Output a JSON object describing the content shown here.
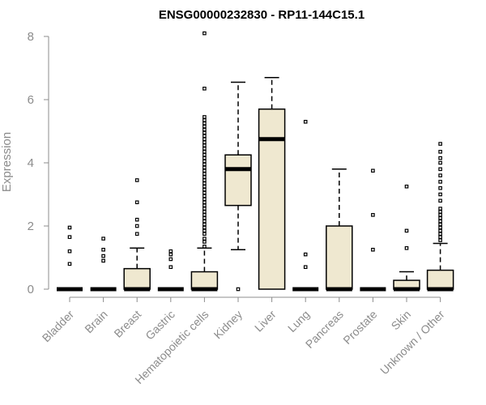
{
  "chart_data": {
    "type": "boxplot",
    "title": "ENSG00000232830 - RP11-144C15.1",
    "ylabel": "Expression",
    "xlabel": "",
    "ylim": [
      0,
      8
    ],
    "yticks": [
      0,
      2,
      4,
      6,
      8
    ],
    "grid": false,
    "legend": "none",
    "colors": {
      "box_fill": "#efe8d0",
      "box_stroke": "#000000",
      "axis": "#8c8c8c"
    },
    "categories": [
      "Bladder",
      "Brain",
      "Breast",
      "Gastric",
      "Hematopoietic cells",
      "Kidney",
      "Liver",
      "Lung",
      "Pancreas",
      "Prostate",
      "Skin",
      "Unknown / Other"
    ],
    "boxes": [
      {
        "q1": 0,
        "median": 0,
        "q3": 0,
        "whisker_low": 0,
        "whisker_high": 0,
        "outliers": [
          0.8,
          1.2,
          1.65,
          1.95
        ]
      },
      {
        "q1": 0,
        "median": 0,
        "q3": 0,
        "whisker_low": 0,
        "whisker_high": 0,
        "outliers": [
          0.9,
          1.05,
          1.25,
          1.6
        ]
      },
      {
        "q1": 0,
        "median": 0,
        "q3": 0.65,
        "whisker_low": 0,
        "whisker_high": 1.3,
        "outliers": [
          1.75,
          2.0,
          2.2,
          2.75,
          3.45
        ]
      },
      {
        "q1": 0,
        "median": 0,
        "q3": 0,
        "whisker_low": 0,
        "whisker_high": 0,
        "outliers": [
          0.7,
          0.95,
          1.1,
          1.2
        ]
      },
      {
        "q1": 0,
        "median": 0,
        "q3": 0.55,
        "whisker_low": 0,
        "whisker_high": 1.3,
        "outliers": [
          1.35,
          1.5,
          1.6,
          1.75,
          1.85,
          1.95,
          2.05,
          2.15,
          2.25,
          2.35,
          2.45,
          2.55,
          2.65,
          2.75,
          2.85,
          2.95,
          3.05,
          3.15,
          3.25,
          3.35,
          3.45,
          3.55,
          3.65,
          3.75,
          3.85,
          3.95,
          4.05,
          4.15,
          4.25,
          4.35,
          4.45,
          4.55,
          4.65,
          4.75,
          4.85,
          4.95,
          5.05,
          5.15,
          5.25,
          5.35,
          5.45,
          6.35,
          8.1
        ]
      },
      {
        "q1": 2.65,
        "median": 3.8,
        "q3": 4.25,
        "whisker_low": 1.25,
        "whisker_high": 6.55,
        "outliers": [
          0
        ]
      },
      {
        "q1": 0,
        "median": 4.75,
        "q3": 5.7,
        "whisker_low": 0,
        "whisker_high": 6.7,
        "outliers": []
      },
      {
        "q1": 0,
        "median": 0,
        "q3": 0,
        "whisker_low": 0,
        "whisker_high": 0,
        "outliers": [
          0.7,
          1.1,
          5.3
        ]
      },
      {
        "q1": 0,
        "median": 0,
        "q3": 2.0,
        "whisker_low": 0,
        "whisker_high": 3.8,
        "outliers": []
      },
      {
        "q1": 0,
        "median": 0,
        "q3": 0,
        "whisker_low": 0,
        "whisker_high": 0,
        "outliers": [
          1.25,
          2.35,
          3.75
        ]
      },
      {
        "q1": 0,
        "median": 0,
        "q3": 0.28,
        "whisker_low": 0,
        "whisker_high": 0.55,
        "outliers": [
          1.3,
          1.85,
          3.25
        ]
      },
      {
        "q1": 0,
        "median": 0,
        "q3": 0.6,
        "whisker_low": 0,
        "whisker_high": 1.45,
        "outliers": [
          1.55,
          1.65,
          1.75,
          1.85,
          1.95,
          2.05,
          2.15,
          2.25,
          2.35,
          2.45,
          2.55,
          2.8,
          3.0,
          3.2,
          3.4,
          3.6,
          3.8,
          4.0,
          4.15,
          4.35,
          4.6
        ]
      }
    ]
  }
}
